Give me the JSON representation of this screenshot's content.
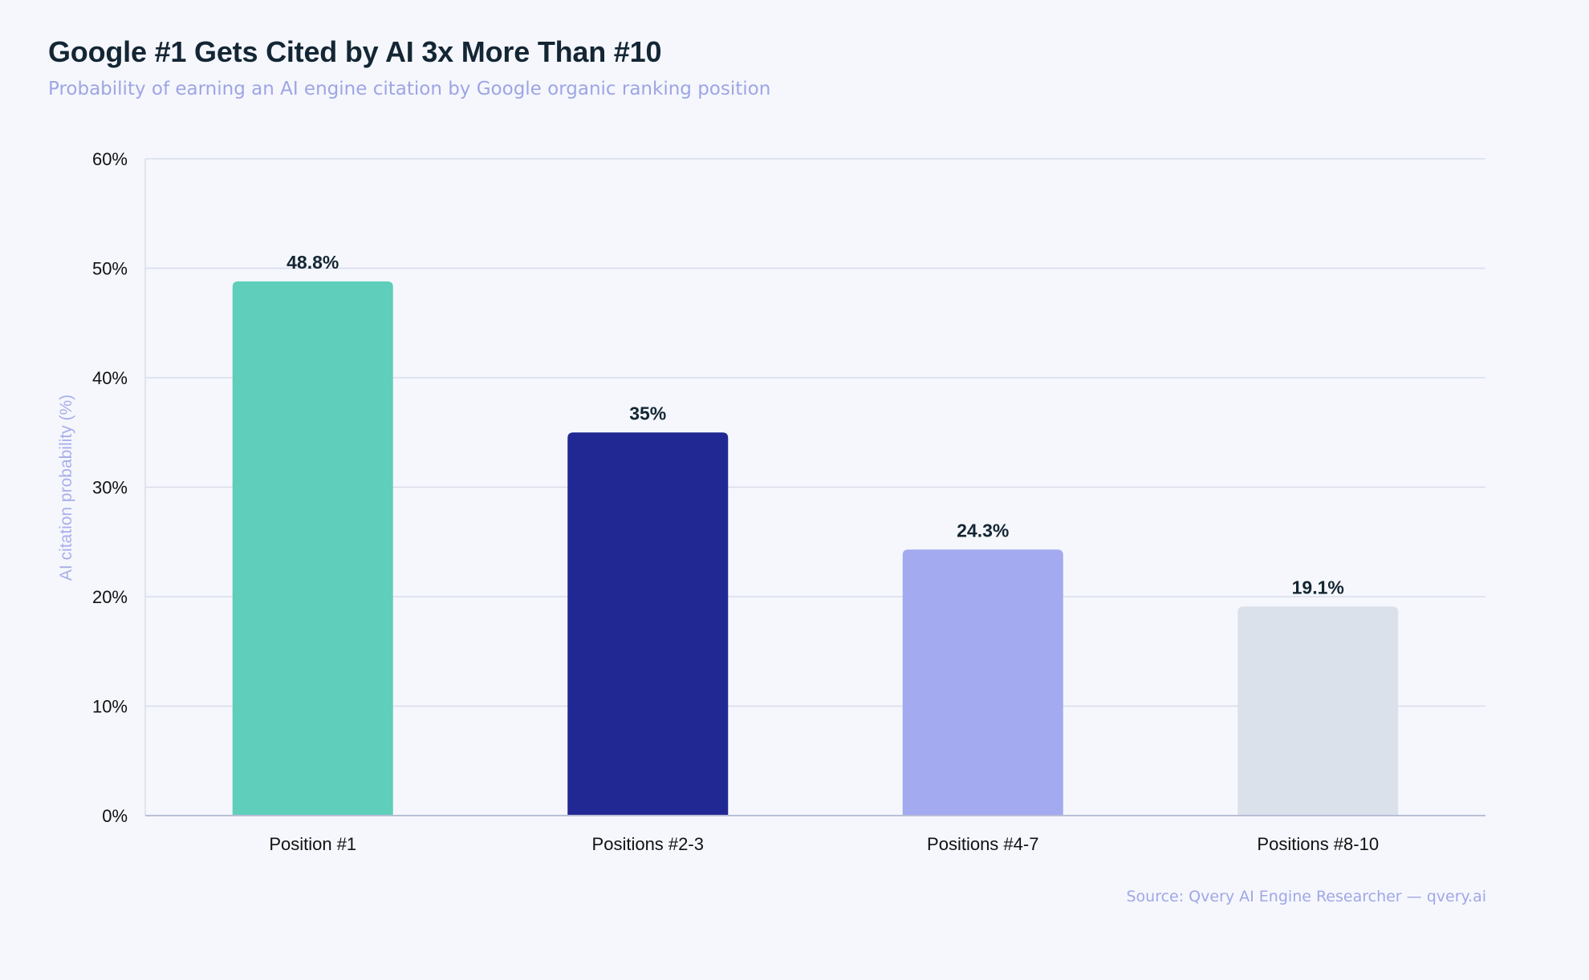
{
  "header": {
    "title": "Google #1 Gets Cited by AI 3x More Than #10",
    "subtitle": "Probability of earning an AI engine citation by Google organic ranking position"
  },
  "footer": {
    "source": "Source: Qvery AI Engine Researcher — qvery.ai"
  },
  "colors": {
    "background": "#f5f7fd",
    "gridline": "#d9dde9",
    "axis": "#b9bfd6",
    "title": "#142634",
    "muted": "#9ea5e3"
  },
  "chart_data": {
    "type": "bar",
    "title": "Google #1 Gets Cited by AI 3x More Than #10",
    "subtitle": "Probability of earning an AI engine citation by Google organic ranking position",
    "xlabel": "",
    "ylabel": "AI citation probability (%)",
    "ylim": [
      0,
      60
    ],
    "yticks": [
      0,
      10,
      20,
      30,
      40,
      50,
      60
    ],
    "ytick_labels": [
      "0%",
      "10%",
      "20%",
      "30%",
      "40%",
      "50%",
      "60%"
    ],
    "grid": true,
    "categories": [
      "Position #1",
      "Positions #2-3",
      "Positions #4-7",
      "Positions #8-10"
    ],
    "values": [
      48.8,
      35,
      24.3,
      19.1
    ],
    "value_labels": [
      "48.8%",
      "35%",
      "24.3%",
      "19.1%"
    ],
    "bar_colors": [
      "#5fcebb",
      "#222893",
      "#a4aaf0",
      "#dbe1ea"
    ]
  }
}
